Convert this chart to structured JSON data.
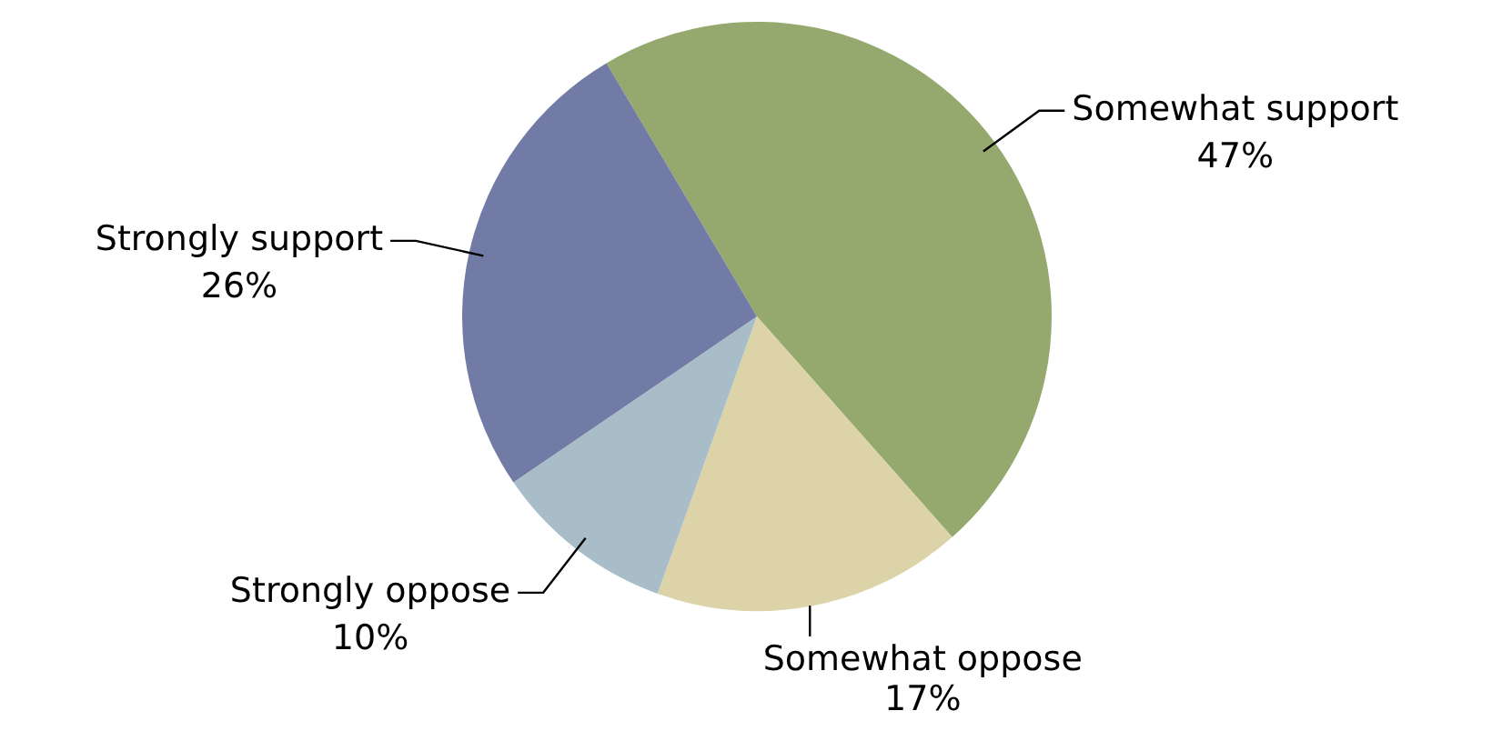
{
  "chart_data": {
    "type": "pie",
    "categories": [
      "Somewhat support",
      "Somewhat oppose",
      "Strongly oppose",
      "Strongly support"
    ],
    "values": [
      47,
      17,
      10,
      26
    ],
    "colors": [
      "#95a86e",
      "#dcd3a9",
      "#a9bdc9",
      "#727ba5"
    ],
    "value_labels": [
      "47%",
      "17%",
      "10%",
      "26%"
    ],
    "legend": false
  }
}
